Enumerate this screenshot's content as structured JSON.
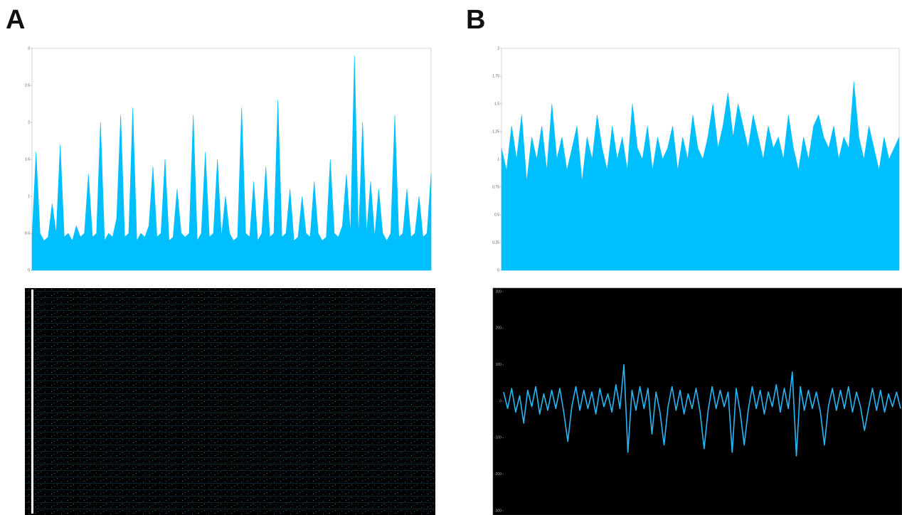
{
  "panels": [
    "A",
    "B"
  ],
  "chart_data": [
    {
      "type": "area",
      "color": "#00bfff",
      "background": "#ffffff",
      "ylim": [
        0,
        3
      ],
      "yticks": [
        0,
        0.5,
        1,
        1.5,
        2,
        2.5,
        3
      ],
      "values": [
        0.45,
        1.6,
        0.5,
        0.4,
        0.45,
        0.9,
        0.5,
        1.7,
        0.45,
        0.5,
        0.4,
        0.6,
        0.45,
        0.5,
        1.3,
        0.45,
        0.5,
        2.0,
        0.4,
        0.5,
        0.45,
        0.7,
        2.1,
        0.45,
        0.5,
        2.2,
        0.4,
        0.5,
        0.45,
        0.6,
        1.4,
        0.45,
        0.5,
        1.5,
        0.4,
        0.45,
        1.1,
        0.5,
        0.45,
        0.5,
        2.1,
        0.4,
        0.5,
        1.6,
        0.45,
        0.5,
        1.5,
        0.45,
        1.0,
        0.5,
        0.4,
        0.45,
        2.2,
        0.5,
        0.45,
        1.2,
        0.4,
        0.5,
        1.4,
        0.45,
        0.5,
        2.3,
        0.45,
        0.5,
        1.1,
        0.4,
        0.45,
        1.0,
        0.5,
        0.45,
        1.2,
        0.5,
        0.4,
        0.45,
        1.5,
        0.5,
        0.45,
        0.6,
        1.3,
        0.5,
        2.9,
        0.45,
        2.0,
        0.5,
        1.2,
        0.45,
        1.1,
        0.5,
        0.4,
        0.5,
        2.1,
        0.45,
        0.5,
        1.1,
        0.45,
        0.5,
        1.0,
        0.45,
        0.5,
        1.3
      ]
    },
    {
      "type": "area",
      "color": "#00bfff",
      "background": "#ffffff",
      "ylim": [
        0,
        2
      ],
      "yticks": [
        0,
        0.25,
        0.5,
        0.75,
        1,
        1.25,
        1.5,
        1.75,
        2
      ],
      "values": [
        1.1,
        0.9,
        1.3,
        1.0,
        1.4,
        0.8,
        1.2,
        1.0,
        1.3,
        0.9,
        1.5,
        1.0,
        1.2,
        0.9,
        1.1,
        1.3,
        0.8,
        1.2,
        1.0,
        1.4,
        1.1,
        0.9,
        1.3,
        1.0,
        1.2,
        0.9,
        1.5,
        1.1,
        1.0,
        1.3,
        0.9,
        1.2,
        1.0,
        1.1,
        1.3,
        0.9,
        1.2,
        1.0,
        1.4,
        1.1,
        1.0,
        1.2,
        1.5,
        1.1,
        1.3,
        1.6,
        1.2,
        1.5,
        1.3,
        1.1,
        1.4,
        1.2,
        1.0,
        1.3,
        1.1,
        1.2,
        1.0,
        1.4,
        1.1,
        0.9,
        1.2,
        1.0,
        1.3,
        1.4,
        1.2,
        1.1,
        1.3,
        1.0,
        1.2,
        1.1,
        1.7,
        1.2,
        1.0,
        1.3,
        1.1,
        0.9,
        1.2,
        1.0,
        1.1,
        1.2
      ]
    },
    {
      "type": "line",
      "color": "#29b6f6",
      "background": "#000000",
      "ylim": [
        -300,
        300
      ],
      "yticks": [
        -300,
        -200,
        -100,
        0,
        100,
        200,
        300
      ],
      "values": [
        25,
        -20,
        35,
        -30,
        15,
        -60,
        30,
        -15,
        40,
        -35,
        20,
        -25,
        30,
        -20,
        35,
        -30,
        -110,
        -15,
        40,
        -25,
        30,
        -20,
        25,
        -35,
        35,
        -15,
        20,
        -30,
        45,
        -20,
        100,
        -140,
        30,
        -25,
        40,
        -20,
        35,
        -90,
        25,
        -30,
        -120,
        -15,
        40,
        -25,
        30,
        -35,
        20,
        -20,
        35,
        -30,
        -130,
        -25,
        40,
        -20,
        30,
        -15,
        25,
        -140,
        35,
        -30,
        -120,
        -25,
        40,
        -20,
        30,
        -35,
        25,
        -15,
        45,
        -30,
        35,
        -20,
        80,
        -150,
        40,
        -25,
        30,
        -20,
        25,
        -30,
        -120,
        -15,
        35,
        -25,
        30,
        -20,
        40,
        -30,
        25,
        -15,
        -80,
        -20,
        35,
        -25,
        30,
        -30,
        20,
        -15,
        25,
        -20
      ]
    }
  ]
}
